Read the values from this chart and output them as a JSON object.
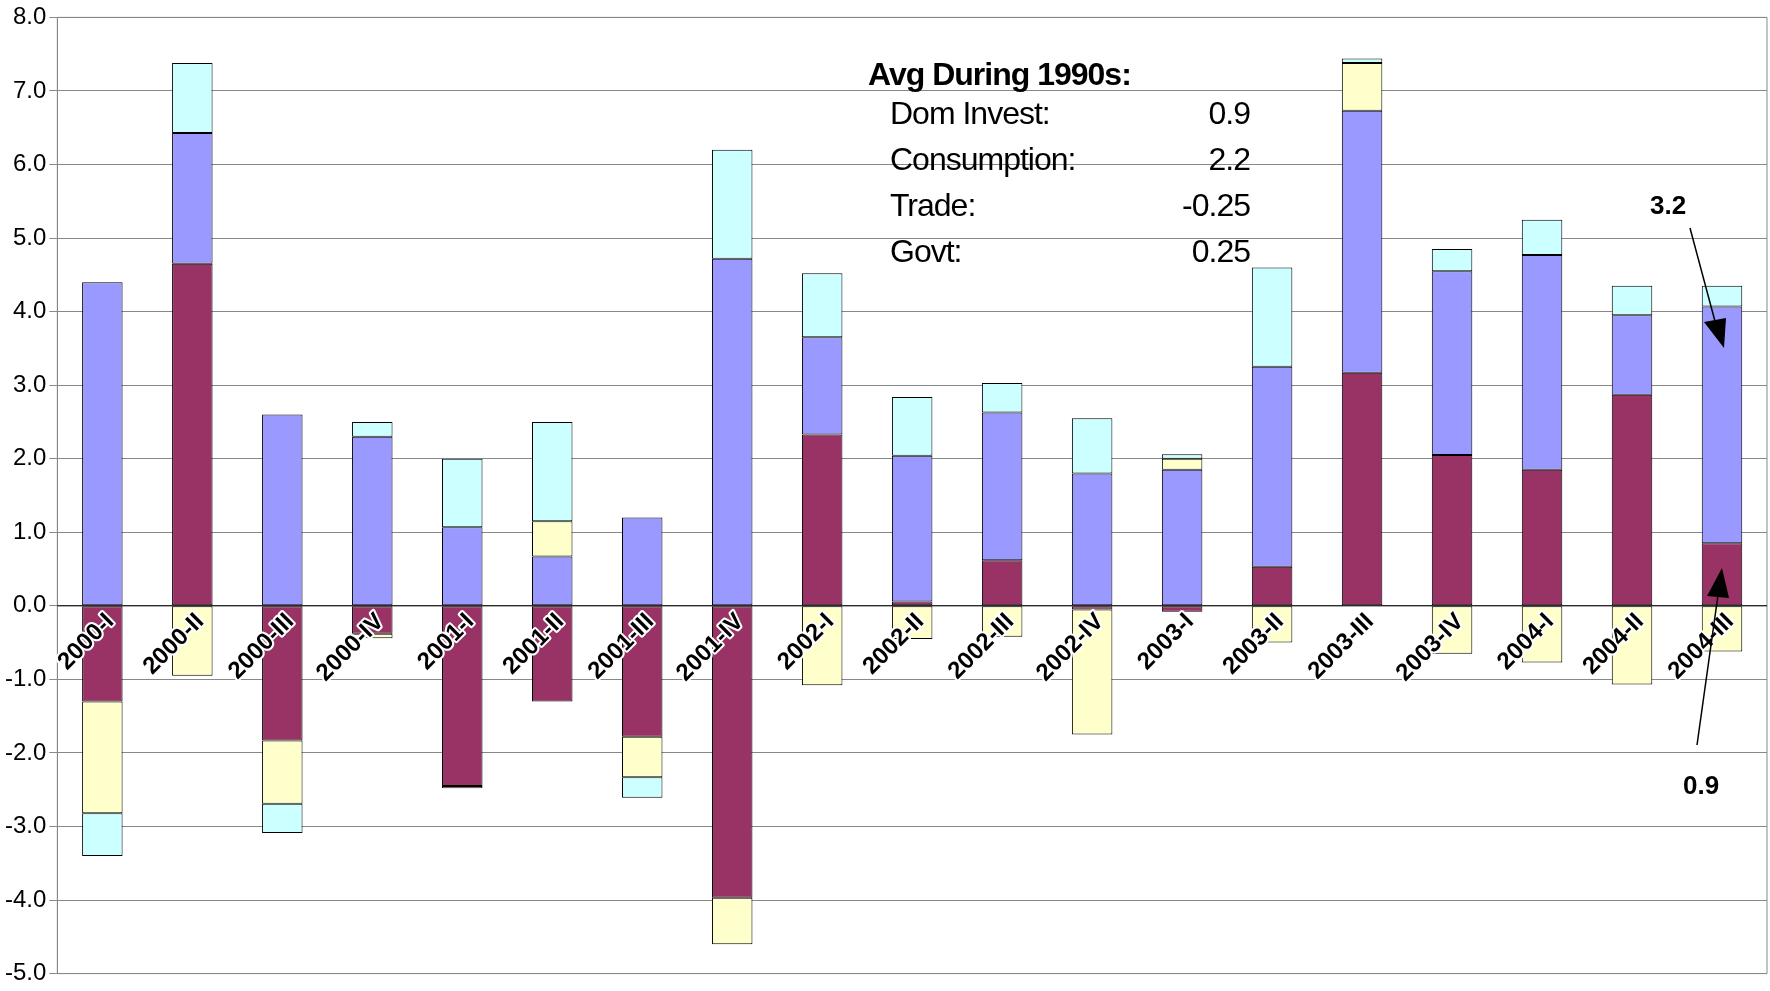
{
  "chart_data": {
    "type": "bar",
    "stacked": true,
    "categories": [
      "2000-I",
      "2000-II",
      "2000-III",
      "2000-IV",
      "2001-I",
      "2001-II",
      "2001-III",
      "2001-IV",
      "2002-I",
      "2002-II",
      "2002-III",
      "2002-IV",
      "2003-I",
      "2003-II",
      "2003-III",
      "2003-IV",
      "2004-I",
      "2004-II",
      "2004-III"
    ],
    "series": [
      {
        "color": "#993366",
        "values": [
          -1.3,
          4.65,
          -1.83,
          -0.38,
          -2.45,
          -1.3,
          -1.78,
          -3.97,
          2.33,
          0.06,
          0.62,
          -0.05,
          -0.08,
          0.53,
          3.17,
          2.05,
          1.85,
          2.87,
          0.85
        ]
      },
      {
        "color": "#9999ff",
        "values": [
          4.4,
          1.78,
          2.6,
          2.3,
          1.07,
          0.67,
          1.2,
          4.72,
          1.32,
          1.98,
          2.01,
          1.8,
          1.85,
          2.72,
          3.56,
          2.5,
          2.92,
          1.08,
          3.22
        ]
      },
      {
        "color": "#ffffcc",
        "values": [
          -1.52,
          -0.95,
          -0.86,
          -0.06,
          -0.03,
          0.48,
          -0.55,
          -0.63,
          -1.08,
          -0.45,
          -0.42,
          -1.7,
          0.15,
          -0.5,
          0.65,
          -0.65,
          -0.77,
          -1.07,
          -0.62
        ]
      },
      {
        "color": "#ccffff",
        "values": [
          -0.58,
          0.95,
          -0.4,
          0.2,
          0.93,
          1.35,
          -0.28,
          1.48,
          0.87,
          0.8,
          0.4,
          0.75,
          0.06,
          1.35,
          0.06,
          0.3,
          0.48,
          0.4,
          0.28
        ]
      }
    ],
    "ylim": [
      -5,
      8
    ],
    "yticks": [
      {
        "value": -5,
        "label": "-5.0"
      },
      {
        "value": -4,
        "label": "-4.0"
      },
      {
        "value": -3,
        "label": "-3.0"
      },
      {
        "value": -2,
        "label": "-2.0"
      },
      {
        "value": -1,
        "label": "-1.0"
      },
      {
        "value": 0,
        "label": "0.0"
      },
      {
        "value": 1,
        "label": "1.0"
      },
      {
        "value": 2,
        "label": "2.0"
      },
      {
        "value": 3,
        "label": "3.0"
      },
      {
        "value": 4,
        "label": "4.0"
      },
      {
        "value": 5,
        "label": "5.0"
      },
      {
        "value": 6,
        "label": "6.0"
      },
      {
        "value": 7,
        "label": "7.0"
      },
      {
        "value": 8,
        "label": "8.0"
      }
    ],
    "grid": "y",
    "annotations": [
      "Avg During 1990s:",
      "Dom Invest:",
      "0.9",
      "Consumption:",
      "2.2",
      "Trade:",
      "-0.25",
      "Govt:",
      "0.25",
      "3.2",
      "0.9"
    ]
  }
}
